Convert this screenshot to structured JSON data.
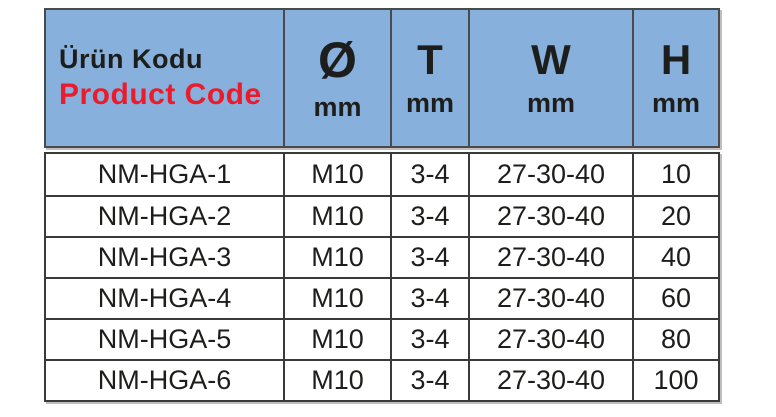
{
  "table": {
    "header": {
      "product_code_tr": "Ürün Kodu",
      "product_code_en": "Product Code",
      "columns": [
        {
          "symbol": "Ø",
          "unit": "mm"
        },
        {
          "symbol": "T",
          "unit": "mm"
        },
        {
          "symbol": "W",
          "unit": "mm"
        },
        {
          "symbol": "H",
          "unit": "mm"
        }
      ]
    },
    "rows": [
      {
        "code": "NM-HGA-1",
        "diameter": "M10",
        "t": "3-4",
        "w": "27-30-40",
        "h": "10"
      },
      {
        "code": "NM-HGA-2",
        "diameter": "M10",
        "t": "3-4",
        "w": "27-30-40",
        "h": "20"
      },
      {
        "code": "NM-HGA-3",
        "diameter": "M10",
        "t": "3-4",
        "w": "27-30-40",
        "h": "40"
      },
      {
        "code": "NM-HGA-4",
        "diameter": "M10",
        "t": "3-4",
        "w": "27-30-40",
        "h": "60"
      },
      {
        "code": "NM-HGA-5",
        "diameter": "M10",
        "t": "3-4",
        "w": "27-30-40",
        "h": "80"
      },
      {
        "code": "NM-HGA-6",
        "diameter": "M10",
        "t": "3-4",
        "w": "27-30-40",
        "h": "100"
      }
    ]
  },
  "colors": {
    "header_bg": "#87B0DC",
    "accent_red": "#EC1B2C",
    "text": "#1D1D1B",
    "border": "#3A3A3A"
  }
}
